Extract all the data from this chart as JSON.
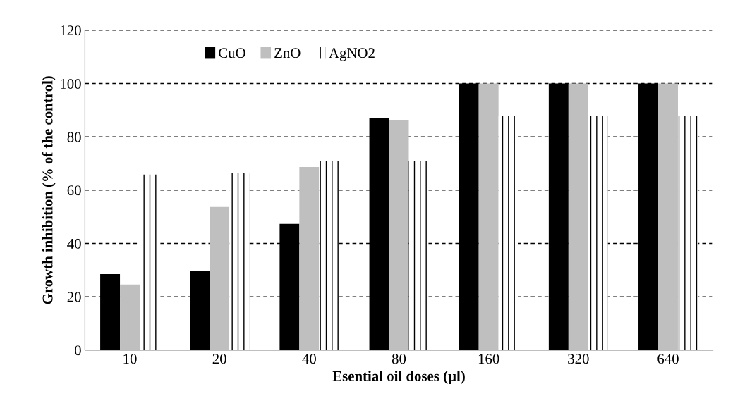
{
  "chart_data": {
    "type": "bar",
    "xlabel": "Esential oil doses (µl)",
    "ylabel": "Growth inhibition (% of the control)",
    "categories": [
      "10",
      "20",
      "40",
      "80",
      "160",
      "320",
      "640"
    ],
    "series": [
      {
        "name": "CuO",
        "color": "#000000",
        "values": [
          28.5,
          29.6,
          47.3,
          87.0,
          100,
          100,
          100
        ]
      },
      {
        "name": "ZnO",
        "color": "#bfbfbf",
        "values": [
          24.6,
          53.7,
          68.7,
          86.4,
          100,
          100,
          100
        ]
      },
      {
        "name": "AgNO2",
        "color": "#000000",
        "values": [
          65.8,
          66.4,
          70.8,
          70.8,
          87.8,
          88.0,
          87.8
        ]
      }
    ],
    "ylim": [
      0,
      120
    ],
    "yticks": [
      0,
      20,
      40,
      60,
      80,
      100,
      120
    ],
    "grid": "y",
    "legend": "top"
  }
}
